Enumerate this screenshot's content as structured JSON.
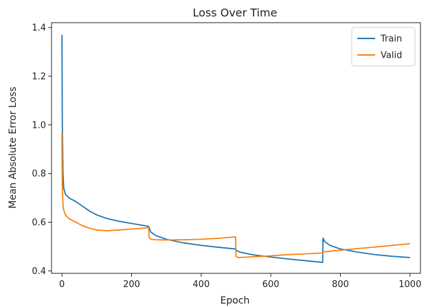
{
  "chart_data": {
    "type": "line",
    "title": "Loss Over Time",
    "xlabel": "Epoch",
    "ylabel": "Mean Absolute Error Loss",
    "xlim": [
      -30,
      1030
    ],
    "ylim": [
      0.39,
      1.42
    ],
    "xticks": [
      0,
      200,
      400,
      600,
      800,
      1000
    ],
    "yticks": [
      0.4,
      0.6,
      0.8,
      1.0,
      1.2,
      1.4
    ],
    "xtick_labels": [
      "0",
      "200",
      "400",
      "600",
      "800",
      "1000"
    ],
    "ytick_labels": [
      "0.4",
      "0.6",
      "0.8",
      "1.0",
      "1.2",
      "1.4"
    ],
    "grid": false,
    "legend_position": "top-right",
    "series": [
      {
        "name": "Train",
        "color": "#1f77b4",
        "x": [
          0,
          1,
          3,
          5,
          10,
          20,
          40,
          60,
          80,
          100,
          130,
          160,
          200,
          230,
          249,
          250,
          255,
          270,
          300,
          350,
          400,
          450,
          499,
          500,
          510,
          550,
          600,
          650,
          700,
          749,
          750,
          755,
          770,
          800,
          850,
          900,
          950,
          1000
        ],
        "y": [
          1.37,
          1.0,
          0.8,
          0.74,
          0.715,
          0.7,
          0.685,
          0.665,
          0.645,
          0.63,
          0.615,
          0.605,
          0.595,
          0.588,
          0.583,
          0.58,
          0.56,
          0.545,
          0.53,
          0.515,
          0.505,
          0.497,
          0.49,
          0.485,
          0.478,
          0.466,
          0.457,
          0.449,
          0.442,
          0.435,
          0.535,
          0.52,
          0.505,
          0.49,
          0.477,
          0.467,
          0.46,
          0.455
        ]
      },
      {
        "name": "Valid",
        "color": "#ff7f0e",
        "x": [
          0,
          1,
          3,
          5,
          10,
          20,
          40,
          60,
          80,
          100,
          130,
          160,
          200,
          230,
          249,
          250,
          255,
          270,
          300,
          350,
          400,
          450,
          499,
          500,
          505,
          550,
          600,
          650,
          700,
          749,
          750,
          800,
          850,
          900,
          950,
          1000
        ],
        "y": [
          0.97,
          0.75,
          0.67,
          0.65,
          0.63,
          0.615,
          0.6,
          0.585,
          0.575,
          0.568,
          0.565,
          0.568,
          0.572,
          0.575,
          0.578,
          0.54,
          0.53,
          0.528,
          0.527,
          0.528,
          0.53,
          0.534,
          0.54,
          0.46,
          0.455,
          0.458,
          0.462,
          0.467,
          0.47,
          0.474,
          0.478,
          0.485,
          0.492,
          0.498,
          0.505,
          0.512
        ]
      }
    ]
  }
}
